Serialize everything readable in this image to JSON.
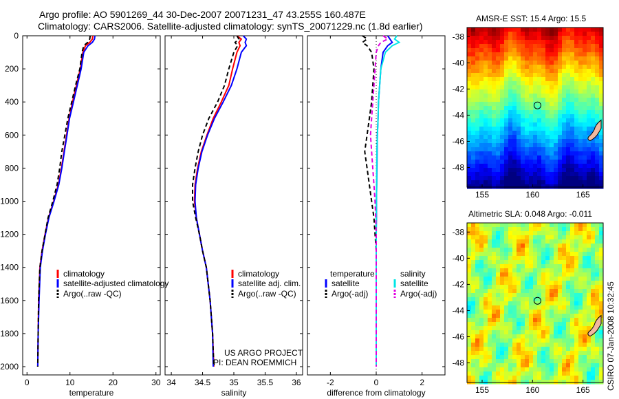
{
  "header": {
    "line1": "Argo profile: AO 5901269_44 30-Dec-2007 20071231_47 43.255S 160.487E",
    "line2": "Climatology: CARS2006. Satellite-adjusted climatology: synTS_20071229.nc (1.8d earlier)"
  },
  "side_stamp": "CSIRO 07-Jan-2008 10:32:45",
  "credit": {
    "line1": "US ARGO PROJECT",
    "line2": "PI: DEAN ROEMMICH"
  },
  "colors": {
    "climatology": "#ff0000",
    "satellite": "#0000ff",
    "argo": "#000000",
    "sat_salinity": "#00e5e5",
    "argo_salinity": "#e000e0"
  },
  "chart_data": [
    {
      "id": "temperature",
      "type": "line",
      "xlabel": "temperature",
      "ylabel": "",
      "xlim": [
        -1,
        31
      ],
      "ylim": [
        0,
        2050
      ],
      "xticks": [
        0,
        10,
        20,
        30
      ],
      "yticks": [
        0,
        200,
        400,
        600,
        800,
        1000,
        1200,
        1400,
        1600,
        1800,
        2000
      ],
      "legend": [
        "climatology",
        "satellite-adjusted climatology",
        "Argo(..raw -QC)"
      ],
      "series": [
        {
          "name": "climatology",
          "color": "#ff0000",
          "dash": "",
          "x": [
            15.3,
            15.2,
            14.6,
            13.6,
            13.0,
            12.4,
            11.5,
            10.6,
            9.8,
            9.2,
            8.6,
            8.0,
            7.3,
            6.2,
            5.0,
            4.2,
            3.5,
            3.0,
            2.7,
            2.6,
            2.5
          ],
          "y": [
            0,
            20,
            40,
            60,
            100,
            200,
            300,
            400,
            500,
            600,
            700,
            800,
            900,
            1000,
            1100,
            1200,
            1300,
            1400,
            1600,
            1800,
            2000
          ]
        },
        {
          "name": "satellite",
          "color": "#0000ff",
          "dash": "",
          "x": [
            15.8,
            15.7,
            15.2,
            14.2,
            13.2,
            12.6,
            11.7,
            10.8,
            9.9,
            9.3,
            8.7,
            8.1,
            7.4,
            6.3,
            5.1,
            4.3,
            3.6,
            3.1,
            2.8,
            2.6,
            2.5
          ],
          "y": [
            0,
            20,
            40,
            60,
            100,
            200,
            300,
            400,
            500,
            600,
            700,
            800,
            900,
            1000,
            1100,
            1200,
            1300,
            1400,
            1600,
            1800,
            2000
          ]
        },
        {
          "name": "Argo",
          "color": "#000000",
          "dash": "6,4",
          "x": [
            14.7,
            14.6,
            14.1,
            13.2,
            12.8,
            12.3,
            11.3,
            10.4,
            9.5,
            8.8,
            8.1,
            7.6,
            7.0,
            6.0,
            4.9,
            4.2,
            3.5,
            3.0,
            2.7,
            2.6,
            2.5
          ],
          "y": [
            0,
            20,
            40,
            60,
            100,
            200,
            300,
            400,
            500,
            600,
            700,
            800,
            900,
            1000,
            1100,
            1200,
            1300,
            1400,
            1600,
            1800,
            2000
          ]
        }
      ]
    },
    {
      "id": "salinity",
      "type": "line",
      "xlabel": "salinity",
      "xlim": [
        33.9,
        36.1
      ],
      "ylim": [
        0,
        2050
      ],
      "xticks": [
        34,
        34.5,
        35,
        35.5,
        36
      ],
      "legend": [
        "climatology",
        "satellite adj. clim.",
        "Argo(..raw -QC)"
      ],
      "series": [
        {
          "name": "climatology",
          "color": "#ff0000",
          "dash": "",
          "x": [
            35.05,
            35.12,
            35.08,
            35.1,
            35.05,
            34.98,
            34.92,
            34.8,
            34.67,
            34.57,
            34.48,
            34.42,
            34.38,
            34.37,
            34.4,
            34.45,
            34.5,
            34.56,
            34.62,
            34.66,
            34.68
          ],
          "y": [
            0,
            20,
            40,
            60,
            100,
            200,
            300,
            400,
            500,
            600,
            700,
            800,
            900,
            1000,
            1100,
            1200,
            1300,
            1400,
            1600,
            1800,
            2000
          ]
        },
        {
          "name": "satellite",
          "color": "#0000ff",
          "dash": "",
          "x": [
            35.15,
            35.2,
            35.18,
            35.2,
            35.12,
            35.05,
            34.96,
            34.83,
            34.69,
            34.58,
            34.49,
            34.43,
            34.39,
            34.38,
            34.4,
            34.45,
            34.5,
            34.56,
            34.62,
            34.66,
            34.67
          ],
          "y": [
            0,
            20,
            40,
            60,
            100,
            200,
            300,
            400,
            500,
            600,
            700,
            800,
            900,
            1000,
            1100,
            1200,
            1300,
            1400,
            1600,
            1800,
            2000
          ]
        },
        {
          "name": "Argo",
          "color": "#000000",
          "dash": "6,4",
          "x": [
            35.05,
            35.08,
            35.02,
            35.06,
            35.0,
            34.92,
            34.85,
            34.74,
            34.6,
            34.5,
            34.43,
            34.38,
            34.34,
            34.34,
            34.39,
            34.45,
            34.5,
            34.56,
            34.62,
            34.66,
            34.68
          ],
          "y": [
            0,
            20,
            40,
            60,
            100,
            200,
            300,
            400,
            500,
            600,
            700,
            800,
            900,
            1000,
            1100,
            1200,
            1300,
            1400,
            1600,
            1800,
            2000
          ]
        }
      ]
    },
    {
      "id": "difference",
      "type": "line",
      "xlabel": "difference from climatology",
      "xlim": [
        -3,
        3
      ],
      "ylim": [
        0,
        2050
      ],
      "xticks": [
        -2,
        0,
        2
      ],
      "legend_left_title": "temperature",
      "legend_right_title": "salinity",
      "legend": [
        "satellite",
        "Argo(-adj)",
        "satellite",
        "Argo(-adj)"
      ],
      "series": [
        {
          "name": "temperature satellite",
          "color": "#0000ff",
          "dash": "",
          "x": [
            0.5,
            0.6,
            0.7,
            0.5,
            0.3,
            0.2,
            0.15,
            0.1,
            0.08,
            0.05,
            0.04,
            0.03,
            0.02,
            0.01,
            0.01,
            0,
            0,
            0,
            0,
            0,
            0
          ],
          "y": [
            0,
            20,
            40,
            60,
            100,
            200,
            300,
            400,
            500,
            600,
            700,
            800,
            900,
            1000,
            1100,
            1200,
            1300,
            1400,
            1600,
            1800,
            2000
          ]
        },
        {
          "name": "temperature Argo(-adj)",
          "color": "#000000",
          "dash": "6,4",
          "x": [
            -0.6,
            -0.4,
            -0.6,
            -0.4,
            -0.2,
            -0.1,
            -0.15,
            -0.2,
            -0.3,
            -0.4,
            -0.5,
            -0.4,
            -0.3,
            -0.2,
            -0.1,
            -0.05,
            0,
            0,
            0,
            0,
            0
          ],
          "y": [
            0,
            20,
            40,
            60,
            100,
            200,
            300,
            400,
            500,
            600,
            700,
            800,
            900,
            1000,
            1100,
            1200,
            1300,
            1400,
            1600,
            1800,
            2000
          ]
        },
        {
          "name": "salinity satellite",
          "color": "#00e5e5",
          "dash": "",
          "x": [
            0.9,
            0.8,
            1.0,
            0.7,
            0.4,
            0.2,
            0.15,
            0.1,
            0.08,
            0.05,
            0.03,
            0.02,
            0.02,
            0.01,
            0,
            0,
            0,
            0,
            0,
            0,
            0
          ],
          "y": [
            0,
            20,
            40,
            60,
            100,
            200,
            300,
            400,
            500,
            600,
            700,
            800,
            900,
            1000,
            1100,
            1200,
            1300,
            1400,
            1600,
            1800,
            2000
          ]
        },
        {
          "name": "salinity Argo(-adj)",
          "color": "#e000e0",
          "dash": "6,4",
          "x": [
            0.3,
            0.5,
            0.2,
            0.1,
            0.0,
            -0.05,
            -0.1,
            -0.15,
            -0.2,
            -0.25,
            -0.2,
            -0.15,
            -0.1,
            -0.05,
            -0.02,
            0,
            0,
            0,
            0,
            0,
            0
          ],
          "y": [
            0,
            20,
            40,
            60,
            100,
            200,
            300,
            400,
            500,
            600,
            700,
            800,
            900,
            1000,
            1100,
            1200,
            1300,
            1400,
            1600,
            1800,
            2000
          ]
        }
      ]
    },
    {
      "id": "sst_map",
      "type": "heatmap",
      "title_label": "AMSR-E SST:",
      "title_value": "15.4",
      "title_argo_label": "Argo:",
      "title_argo_value": "15.5",
      "xlim": [
        153.5,
        167
      ],
      "ylim": [
        -49.5,
        -37.3
      ],
      "xticks": [
        155,
        160,
        165
      ],
      "yticks": [
        -38,
        -40,
        -42,
        -44,
        -46,
        -48
      ],
      "marker": {
        "lon": 160.487,
        "lat": -43.255
      }
    },
    {
      "id": "sla_map",
      "type": "heatmap",
      "title_label": "Altimetric SLA:",
      "title_value": "0.048",
      "title_argo_label": "Argo:",
      "title_argo_value": "-0.011",
      "xlim": [
        153.5,
        167
      ],
      "ylim": [
        -49.5,
        -37.3
      ],
      "xticks": [
        155,
        160,
        165
      ],
      "yticks": [
        -38,
        -40,
        -42,
        -44,
        -46,
        -48
      ],
      "marker": {
        "lon": 160.487,
        "lat": -43.255
      }
    }
  ]
}
